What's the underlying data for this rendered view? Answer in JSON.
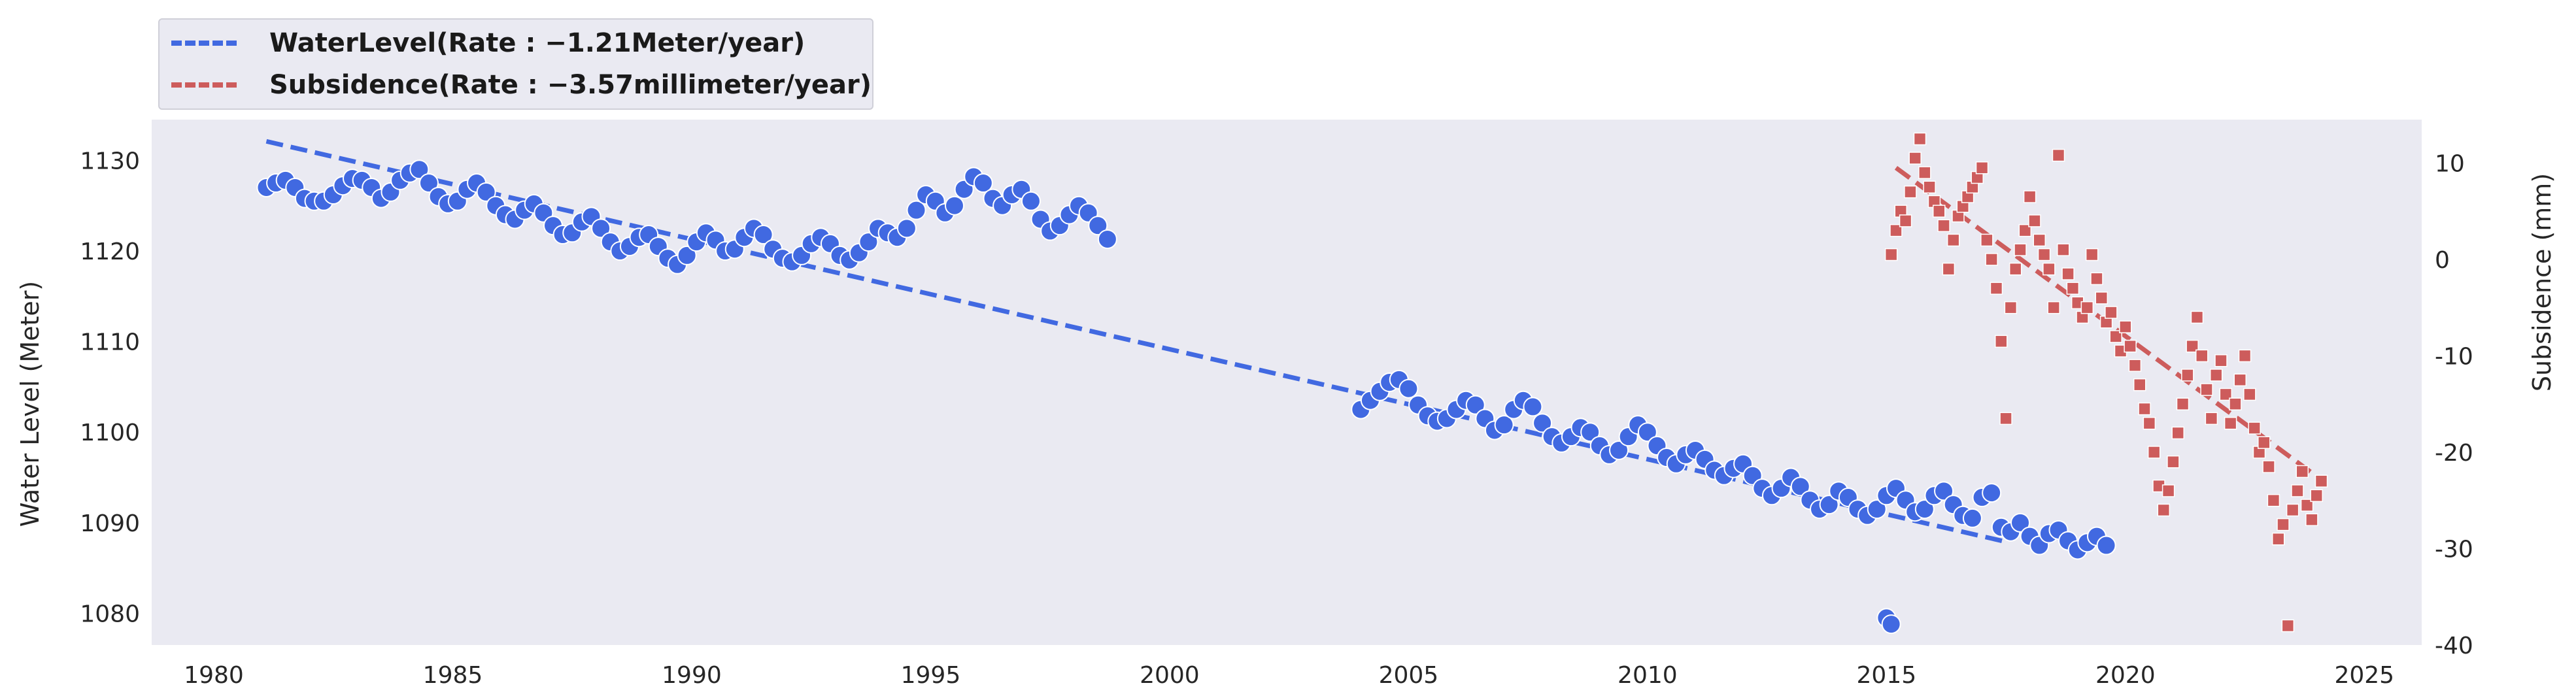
{
  "chart_data": {
    "type": "scatter",
    "title": "",
    "xlabel": "",
    "ylabel": "Water Level (Meter)",
    "y2label": "Subsidence (mm)",
    "xlim": [
      1978.7,
      2026.2
    ],
    "ylim": [
      1076.5,
      1134.5
    ],
    "y2lim": [
      -40.0,
      14.5
    ],
    "xticks": [
      1980,
      1985,
      1990,
      1995,
      2000,
      2005,
      2010,
      2015,
      2020,
      2025
    ],
    "yticks": [
      1080,
      1090,
      1100,
      1110,
      1120,
      1130
    ],
    "y2ticks": [
      -40,
      -30,
      -20,
      -10,
      0,
      10
    ],
    "grid": false,
    "legend_position": "above-top-left",
    "series": [
      {
        "name": "WaterLevel(Rate : −1.21Meter/year)",
        "axis": "left",
        "marker": "circle",
        "color": "#4169e1",
        "trend": {
          "x": [
            1981.1,
            2017.5
          ],
          "y": [
            1132.1,
            1087.9
          ]
        },
        "points": [
          [
            1981.1,
            1127.0
          ],
          [
            1981.3,
            1127.5
          ],
          [
            1981.5,
            1127.8
          ],
          [
            1981.7,
            1127.0
          ],
          [
            1981.9,
            1125.8
          ],
          [
            1982.1,
            1125.5
          ],
          [
            1982.3,
            1125.5
          ],
          [
            1982.5,
            1126.2
          ],
          [
            1982.7,
            1127.2
          ],
          [
            1982.9,
            1128.0
          ],
          [
            1983.1,
            1127.8
          ],
          [
            1983.3,
            1127.0
          ],
          [
            1983.5,
            1125.8
          ],
          [
            1983.7,
            1126.5
          ],
          [
            1983.9,
            1127.8
          ],
          [
            1984.1,
            1128.6
          ],
          [
            1984.3,
            1129.0
          ],
          [
            1984.5,
            1127.5
          ],
          [
            1984.7,
            1126.0
          ],
          [
            1984.9,
            1125.2
          ],
          [
            1985.1,
            1125.5
          ],
          [
            1985.3,
            1126.8
          ],
          [
            1985.5,
            1127.5
          ],
          [
            1985.7,
            1126.5
          ],
          [
            1985.9,
            1125.0
          ],
          [
            1986.1,
            1124.0
          ],
          [
            1986.3,
            1123.5
          ],
          [
            1986.5,
            1124.5
          ],
          [
            1986.7,
            1125.2
          ],
          [
            1986.9,
            1124.2
          ],
          [
            1987.1,
            1122.8
          ],
          [
            1987.3,
            1121.8
          ],
          [
            1987.5,
            1122.0
          ],
          [
            1987.7,
            1123.2
          ],
          [
            1987.9,
            1123.8
          ],
          [
            1988.1,
            1122.5
          ],
          [
            1988.3,
            1121.0
          ],
          [
            1988.5,
            1120.0
          ],
          [
            1988.7,
            1120.5
          ],
          [
            1988.9,
            1121.5
          ],
          [
            1989.1,
            1121.8
          ],
          [
            1989.3,
            1120.5
          ],
          [
            1989.5,
            1119.2
          ],
          [
            1989.7,
            1118.5
          ],
          [
            1989.9,
            1119.5
          ],
          [
            1990.1,
            1121.0
          ],
          [
            1990.3,
            1122.0
          ],
          [
            1990.5,
            1121.2
          ],
          [
            1990.7,
            1120.0
          ],
          [
            1990.9,
            1120.2
          ],
          [
            1991.1,
            1121.5
          ],
          [
            1991.3,
            1122.5
          ],
          [
            1991.5,
            1121.8
          ],
          [
            1991.7,
            1120.2
          ],
          [
            1991.9,
            1119.2
          ],
          [
            1992.1,
            1118.8
          ],
          [
            1992.3,
            1119.5
          ],
          [
            1992.5,
            1120.8
          ],
          [
            1992.7,
            1121.5
          ],
          [
            1992.9,
            1120.8
          ],
          [
            1993.1,
            1119.5
          ],
          [
            1993.3,
            1119.0
          ],
          [
            1993.5,
            1119.8
          ],
          [
            1993.7,
            1121.0
          ],
          [
            1993.9,
            1122.5
          ],
          [
            1994.1,
            1122.0
          ],
          [
            1994.3,
            1121.5
          ],
          [
            1994.5,
            1122.5
          ],
          [
            1994.7,
            1124.5
          ],
          [
            1994.9,
            1126.2
          ],
          [
            1995.1,
            1125.5
          ],
          [
            1995.3,
            1124.2
          ],
          [
            1995.5,
            1125.0
          ],
          [
            1995.7,
            1126.8
          ],
          [
            1995.9,
            1128.2
          ],
          [
            1996.1,
            1127.5
          ],
          [
            1996.3,
            1125.8
          ],
          [
            1996.5,
            1125.0
          ],
          [
            1996.7,
            1126.2
          ],
          [
            1996.9,
            1126.8
          ],
          [
            1997.1,
            1125.5
          ],
          [
            1997.3,
            1123.5
          ],
          [
            1997.5,
            1122.2
          ],
          [
            1997.7,
            1122.8
          ],
          [
            1997.9,
            1124.0
          ],
          [
            1998.1,
            1125.0
          ],
          [
            1998.3,
            1124.2
          ],
          [
            1998.5,
            1122.8
          ],
          [
            1998.7,
            1121.3
          ],
          [
            2004.0,
            1102.5
          ],
          [
            2004.2,
            1103.5
          ],
          [
            2004.4,
            1104.5
          ],
          [
            2004.6,
            1105.5
          ],
          [
            2004.8,
            1105.8
          ],
          [
            2005.0,
            1104.8
          ],
          [
            2005.2,
            1103.0
          ],
          [
            2005.4,
            1101.8
          ],
          [
            2005.6,
            1101.2
          ],
          [
            2005.8,
            1101.5
          ],
          [
            2006.0,
            1102.5
          ],
          [
            2006.2,
            1103.5
          ],
          [
            2006.4,
            1103.0
          ],
          [
            2006.6,
            1101.5
          ],
          [
            2006.8,
            1100.2
          ],
          [
            2007.0,
            1100.8
          ],
          [
            2007.2,
            1102.5
          ],
          [
            2007.4,
            1103.5
          ],
          [
            2007.6,
            1102.8
          ],
          [
            2007.8,
            1101.0
          ],
          [
            2008.0,
            1099.5
          ],
          [
            2008.2,
            1098.8
          ],
          [
            2008.4,
            1099.5
          ],
          [
            2008.6,
            1100.5
          ],
          [
            2008.8,
            1100.0
          ],
          [
            2009.0,
            1098.5
          ],
          [
            2009.2,
            1097.5
          ],
          [
            2009.4,
            1098.0
          ],
          [
            2009.6,
            1099.5
          ],
          [
            2009.8,
            1100.8
          ],
          [
            2010.0,
            1100.0
          ],
          [
            2010.2,
            1098.5
          ],
          [
            2010.4,
            1097.2
          ],
          [
            2010.6,
            1096.5
          ],
          [
            2010.8,
            1097.5
          ],
          [
            2011.0,
            1098.0
          ],
          [
            2011.2,
            1097.0
          ],
          [
            2011.4,
            1095.8
          ],
          [
            2011.6,
            1095.2
          ],
          [
            2011.8,
            1096.0
          ],
          [
            2012.0,
            1096.5
          ],
          [
            2012.2,
            1095.2
          ],
          [
            2012.4,
            1093.8
          ],
          [
            2012.6,
            1093.0
          ],
          [
            2012.8,
            1093.8
          ],
          [
            2013.0,
            1095.0
          ],
          [
            2013.2,
            1094.0
          ],
          [
            2013.4,
            1092.5
          ],
          [
            2013.6,
            1091.5
          ],
          [
            2013.8,
            1092.0
          ],
          [
            2014.0,
            1093.5
          ],
          [
            2014.2,
            1092.8
          ],
          [
            2014.4,
            1091.5
          ],
          [
            2014.6,
            1090.8
          ],
          [
            2014.8,
            1091.5
          ],
          [
            2015.0,
            1093.0
          ],
          [
            2015.2,
            1093.8
          ],
          [
            2015.4,
            1092.5
          ],
          [
            2015.6,
            1091.2
          ],
          [
            2015.8,
            1091.5
          ],
          [
            2016.0,
            1093.0
          ],
          [
            2016.2,
            1093.5
          ],
          [
            2016.4,
            1092.0
          ],
          [
            2016.6,
            1090.8
          ],
          [
            2016.8,
            1090.5
          ],
          [
            2017.0,
            1092.8
          ],
          [
            2017.2,
            1093.3
          ],
          [
            2017.4,
            1089.5
          ],
          [
            2017.6,
            1089.0
          ],
          [
            2017.8,
            1090.0
          ],
          [
            2018.0,
            1088.5
          ],
          [
            2018.2,
            1087.5
          ],
          [
            2018.4,
            1088.8
          ],
          [
            2018.6,
            1089.2
          ],
          [
            2018.8,
            1088.0
          ],
          [
            2019.0,
            1087.0
          ],
          [
            2019.2,
            1087.8
          ],
          [
            2019.4,
            1088.5
          ],
          [
            2019.6,
            1087.5
          ],
          [
            2015.0,
            1079.5
          ],
          [
            2015.1,
            1078.8
          ]
        ]
      },
      {
        "name": "Subsidence(Rate : −3.57millimeter/year)",
        "axis": "right",
        "marker": "square",
        "color": "#cd5c5c",
        "trend": {
          "x": [
            2015.2,
            2024.0
          ],
          "y": [
            9.5,
            -22.5
          ]
        },
        "points": [
          [
            2015.1,
            0.5
          ],
          [
            2015.2,
            3.0
          ],
          [
            2015.3,
            5.0
          ],
          [
            2015.4,
            4.0
          ],
          [
            2015.5,
            7.0
          ],
          [
            2015.6,
            10.5
          ],
          [
            2015.7,
            12.5
          ],
          [
            2015.8,
            9.0
          ],
          [
            2015.9,
            7.5
          ],
          [
            2016.0,
            6.0
          ],
          [
            2016.1,
            5.0
          ],
          [
            2016.2,
            3.5
          ],
          [
            2016.3,
            -1.0
          ],
          [
            2016.4,
            2.0
          ],
          [
            2016.5,
            4.5
          ],
          [
            2016.6,
            5.5
          ],
          [
            2016.7,
            6.5
          ],
          [
            2016.8,
            7.5
          ],
          [
            2016.9,
            8.5
          ],
          [
            2017.0,
            9.5
          ],
          [
            2017.1,
            2.0
          ],
          [
            2017.2,
            0.0
          ],
          [
            2017.3,
            -3.0
          ],
          [
            2017.4,
            -8.5
          ],
          [
            2017.5,
            -16.5
          ],
          [
            2017.6,
            -5.0
          ],
          [
            2017.7,
            -1.0
          ],
          [
            2017.8,
            1.0
          ],
          [
            2017.9,
            3.0
          ],
          [
            2018.0,
            6.5
          ],
          [
            2018.1,
            4.0
          ],
          [
            2018.2,
            2.0
          ],
          [
            2018.3,
            0.5
          ],
          [
            2018.4,
            -1.0
          ],
          [
            2018.5,
            -5.0
          ],
          [
            2018.6,
            10.8
          ],
          [
            2018.7,
            1.0
          ],
          [
            2018.8,
            -1.5
          ],
          [
            2018.9,
            -3.0
          ],
          [
            2019.0,
            -4.5
          ],
          [
            2019.1,
            -6.0
          ],
          [
            2019.2,
            -5.0
          ],
          [
            2019.3,
            0.5
          ],
          [
            2019.4,
            -2.0
          ],
          [
            2019.5,
            -4.0
          ],
          [
            2019.6,
            -6.5
          ],
          [
            2019.7,
            -5.5
          ],
          [
            2019.8,
            -8.0
          ],
          [
            2019.9,
            -9.5
          ],
          [
            2020.0,
            -7.0
          ],
          [
            2020.1,
            -9.0
          ],
          [
            2020.2,
            -11.0
          ],
          [
            2020.3,
            -13.0
          ],
          [
            2020.4,
            -15.5
          ],
          [
            2020.5,
            -17.0
          ],
          [
            2020.6,
            -20.0
          ],
          [
            2020.7,
            -23.5
          ],
          [
            2020.8,
            -26.0
          ],
          [
            2020.9,
            -24.0
          ],
          [
            2021.0,
            -21.0
          ],
          [
            2021.1,
            -18.0
          ],
          [
            2021.2,
            -15.0
          ],
          [
            2021.3,
            -12.0
          ],
          [
            2021.4,
            -9.0
          ],
          [
            2021.5,
            -6.0
          ],
          [
            2021.6,
            -10.0
          ],
          [
            2021.7,
            -13.5
          ],
          [
            2021.8,
            -16.5
          ],
          [
            2021.9,
            -12.0
          ],
          [
            2022.0,
            -10.5
          ],
          [
            2022.1,
            -14.0
          ],
          [
            2022.2,
            -17.0
          ],
          [
            2022.3,
            -15.0
          ],
          [
            2022.4,
            -12.5
          ],
          [
            2022.5,
            -10.0
          ],
          [
            2022.6,
            -14.0
          ],
          [
            2022.7,
            -17.5
          ],
          [
            2022.8,
            -20.0
          ],
          [
            2022.9,
            -19.0
          ],
          [
            2023.0,
            -21.5
          ],
          [
            2023.1,
            -25.0
          ],
          [
            2023.2,
            -29.0
          ],
          [
            2023.3,
            -27.5
          ],
          [
            2023.4,
            -38.0
          ],
          [
            2023.5,
            -26.0
          ],
          [
            2023.6,
            -24.0
          ],
          [
            2023.7,
            -22.0
          ],
          [
            2023.8,
            -25.5
          ],
          [
            2023.9,
            -27.0
          ],
          [
            2024.0,
            -24.5
          ],
          [
            2024.1,
            -23.0
          ]
        ]
      }
    ]
  }
}
